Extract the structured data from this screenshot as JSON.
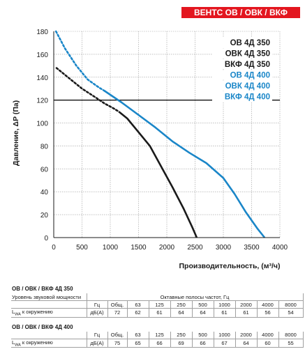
{
  "brand_tag": "ВЕНТС ОВ / ОВК / ВКФ",
  "chart_data": {
    "type": "line",
    "xlabel": "Производительность, (м³/ч)",
    "ylabel": "Давление, ΔP (Па)",
    "xlim": [
      0,
      4000
    ],
    "ylim": [
      0,
      180
    ],
    "x_ticks": [
      0,
      500,
      1000,
      1500,
      2000,
      2500,
      3000,
      3500,
      4000
    ],
    "y_ticks": [
      0,
      20,
      40,
      60,
      80,
      100,
      120,
      140,
      160,
      180
    ],
    "grid": true,
    "reference_line_y": 120,
    "legend_position": "top-right",
    "series": [
      {
        "name": "ОВ 4Д 350",
        "color": "#1a1a1a",
        "dashed_points": [
          [
            50,
            148
          ],
          [
            300,
            138
          ],
          [
            500,
            130
          ],
          [
            750,
            122
          ],
          [
            900,
            117
          ],
          [
            1050,
            113
          ],
          [
            1150,
            110
          ]
        ],
        "solid_points": [
          [
            1150,
            110
          ],
          [
            1300,
            104
          ],
          [
            1500,
            92
          ],
          [
            1700,
            80
          ],
          [
            1900,
            62
          ],
          [
            2100,
            44
          ],
          [
            2300,
            25
          ],
          [
            2450,
            9
          ],
          [
            2530,
            0
          ]
        ]
      },
      {
        "name": "ОВК 4Д 350",
        "color": "#1a1a1a",
        "dashed_points": [
          [
            50,
            148
          ],
          [
            300,
            138
          ],
          [
            500,
            130
          ],
          [
            750,
            122
          ],
          [
            900,
            117
          ],
          [
            1050,
            113
          ],
          [
            1150,
            110
          ]
        ],
        "solid_points": [
          [
            1150,
            110
          ],
          [
            1300,
            104
          ],
          [
            1500,
            92
          ],
          [
            1700,
            80
          ],
          [
            1900,
            62
          ],
          [
            2100,
            44
          ],
          [
            2300,
            25
          ],
          [
            2450,
            9
          ],
          [
            2530,
            0
          ]
        ]
      },
      {
        "name": "ВКФ 4Д 350",
        "color": "#1a1a1a",
        "dashed_points": [
          [
            50,
            148
          ],
          [
            300,
            138
          ],
          [
            500,
            130
          ],
          [
            750,
            122
          ],
          [
            900,
            117
          ],
          [
            1050,
            113
          ],
          [
            1150,
            110
          ]
        ],
        "solid_points": [
          [
            1150,
            110
          ],
          [
            1300,
            104
          ],
          [
            1500,
            92
          ],
          [
            1700,
            80
          ],
          [
            1900,
            62
          ],
          [
            2100,
            44
          ],
          [
            2300,
            25
          ],
          [
            2450,
            9
          ],
          [
            2530,
            0
          ]
        ]
      },
      {
        "name": "ОВ 4Д 400",
        "color": "#1a86c8",
        "dashed_points": [
          [
            40,
            180
          ],
          [
            200,
            165
          ],
          [
            400,
            150
          ],
          [
            600,
            138
          ],
          [
            800,
            131
          ],
          [
            900,
            128
          ]
        ],
        "solid_points": [
          [
            900,
            128
          ],
          [
            1200,
            118
          ],
          [
            1500,
            107
          ],
          [
            1800,
            96
          ],
          [
            2100,
            84
          ],
          [
            2400,
            74
          ],
          [
            2700,
            65
          ],
          [
            3000,
            52
          ],
          [
            3200,
            38
          ],
          [
            3400,
            22
          ],
          [
            3600,
            8
          ],
          [
            3730,
            0
          ]
        ]
      },
      {
        "name": "ОВК 4Д 400",
        "color": "#1a86c8",
        "dashed_points": [
          [
            40,
            180
          ],
          [
            200,
            165
          ],
          [
            400,
            150
          ],
          [
            600,
            138
          ],
          [
            800,
            131
          ],
          [
            900,
            128
          ]
        ],
        "solid_points": [
          [
            900,
            128
          ],
          [
            1200,
            118
          ],
          [
            1500,
            107
          ],
          [
            1800,
            96
          ],
          [
            2100,
            84
          ],
          [
            2400,
            74
          ],
          [
            2700,
            65
          ],
          [
            3000,
            52
          ],
          [
            3200,
            38
          ],
          [
            3400,
            22
          ],
          [
            3600,
            8
          ],
          [
            3730,
            0
          ]
        ]
      },
      {
        "name": "ВКФ 4Д 400",
        "color": "#1a86c8",
        "dashed_points": [
          [
            40,
            180
          ],
          [
            200,
            165
          ],
          [
            400,
            150
          ],
          [
            600,
            138
          ],
          [
            800,
            131
          ],
          [
            900,
            128
          ]
        ],
        "solid_points": [
          [
            900,
            128
          ],
          [
            1200,
            118
          ],
          [
            1500,
            107
          ],
          [
            1800,
            96
          ],
          [
            2100,
            84
          ],
          [
            2400,
            74
          ],
          [
            2700,
            65
          ],
          [
            3000,
            52
          ],
          [
            3200,
            38
          ],
          [
            3400,
            22
          ],
          [
            3600,
            8
          ],
          [
            3730,
            0
          ]
        ]
      }
    ]
  },
  "noise_tables": {
    "octave_header": "Октавные полосы частот, Гц",
    "row_label": "Уровень звуковой мощности",
    "lwa_label": "L",
    "lwa_sub": "WA",
    "lwa_suffix": " к окружению",
    "unit_hz": "Гц",
    "unit_db": "дБ(А)",
    "total_label": "Общ.",
    "frequencies": [
      "63",
      "125",
      "250",
      "500",
      "1000",
      "2000",
      "4000",
      "8000"
    ],
    "models": [
      {
        "title": "ОВ / ОВК / ВКФ 4Д 350",
        "total": "72",
        "levels": [
          "62",
          "61",
          "64",
          "64",
          "61",
          "61",
          "56",
          "54"
        ]
      },
      {
        "title": "ОВ / ОВК / ВКФ 4Д 400",
        "total": "75",
        "levels": [
          "65",
          "66",
          "69",
          "66",
          "67",
          "64",
          "60",
          "55"
        ]
      }
    ]
  }
}
